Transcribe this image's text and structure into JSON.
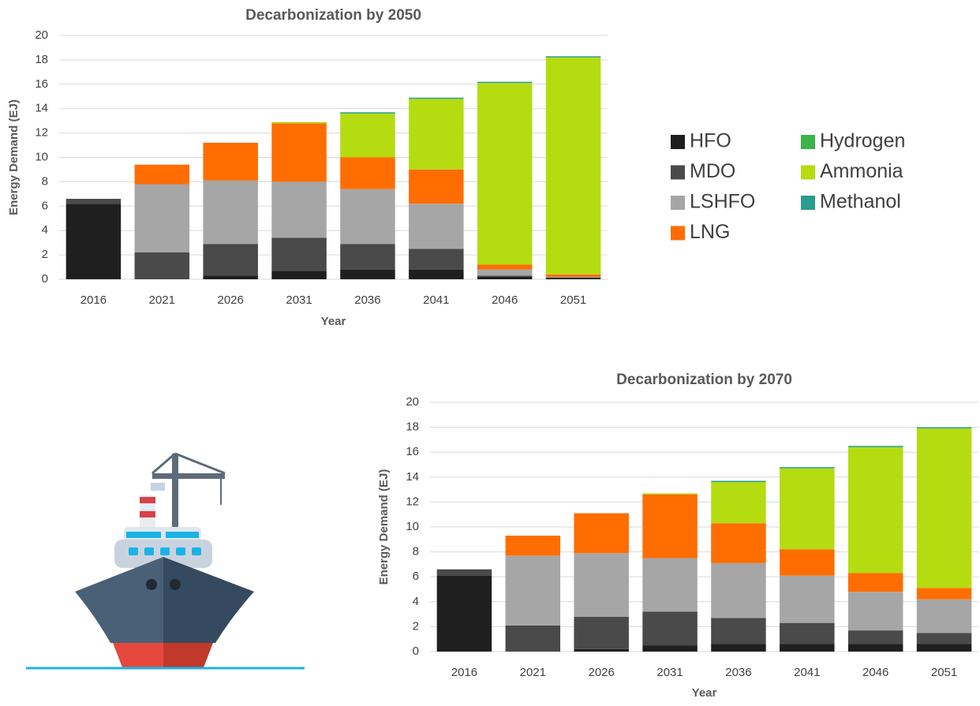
{
  "chart_data": [
    {
      "type": "bar",
      "stacked": true,
      "title": "Decarbonization by 2050",
      "x_label": "Year",
      "y_label": "Energy Demand (EJ)",
      "categories": [
        "2016",
        "2021",
        "2026",
        "2031",
        "2036",
        "2041",
        "2046",
        "2051"
      ],
      "ylim": [
        0,
        20
      ],
      "yticks": [
        0,
        2,
        4,
        6,
        8,
        10,
        12,
        14,
        16,
        18,
        20
      ],
      "grid": true,
      "series": [
        {
          "name": "HFO",
          "color": "#1f1f1f",
          "values": [
            6.2,
            0,
            0.3,
            0.7,
            0.8,
            0.8,
            0.2,
            0.1
          ]
        },
        {
          "name": "MDO",
          "color": "#4a4a4a",
          "values": [
            0.4,
            2.2,
            2.6,
            2.7,
            2.1,
            1.7,
            0.1,
            0.05
          ]
        },
        {
          "name": "LSHFO",
          "color": "#a6a6a6",
          "values": [
            0,
            5.6,
            5.2,
            4.6,
            4.5,
            3.7,
            0.5,
            0.05
          ]
        },
        {
          "name": "LNG",
          "color": "#ff6d00",
          "values": [
            0,
            1.6,
            3.1,
            4.8,
            2.6,
            2.8,
            0.4,
            0.2
          ]
        },
        {
          "name": "Hydrogen",
          "color": "#3cb44b",
          "values": [
            0,
            0,
            0,
            0,
            0,
            0,
            0,
            0
          ]
        },
        {
          "name": "Ammonia",
          "color": "#b5dc10",
          "values": [
            0,
            0,
            0,
            0.1,
            3.6,
            5.8,
            14.9,
            17.8
          ]
        },
        {
          "name": "Methanol",
          "color": "#2a9d8f",
          "values": [
            0,
            0,
            0,
            0,
            0.1,
            0.1,
            0.1,
            0.1
          ]
        }
      ]
    },
    {
      "type": "bar",
      "stacked": true,
      "title": "Decarbonization by 2070",
      "x_label": "Year",
      "y_label": "Energy Demand (EJ)",
      "categories": [
        "2016",
        "2021",
        "2026",
        "2031",
        "2036",
        "2041",
        "2046",
        "2051"
      ],
      "ylim": [
        0,
        20
      ],
      "yticks": [
        0,
        2,
        4,
        6,
        8,
        10,
        12,
        14,
        16,
        18,
        20
      ],
      "grid": true,
      "series": [
        {
          "color": "#1f1f1f",
          "values": [
            6.1,
            0,
            0.2,
            0.5,
            0.6,
            0.6,
            0.6,
            0.6
          ]
        },
        {
          "color": "#4a4a4a",
          "values": [
            0.5,
            2.1,
            2.6,
            2.7,
            2.1,
            1.7,
            1.1,
            0.9
          ]
        },
        {
          "color": "#a6a6a6",
          "values": [
            0,
            5.6,
            5.1,
            4.3,
            4.4,
            3.8,
            3.1,
            2.7
          ]
        },
        {
          "color": "#ff6d00",
          "values": [
            0,
            1.6,
            3.2,
            5.1,
            3.2,
            2.1,
            1.5,
            0.9
          ]
        },
        {
          "color": "#3cb44b",
          "values": [
            0,
            0,
            0,
            0,
            0,
            0,
            0,
            0
          ]
        },
        {
          "color": "#b5dc10",
          "values": [
            0,
            0,
            0,
            0.1,
            3.3,
            6.5,
            10.1,
            12.8
          ]
        },
        {
          "color": "#2a9d8f",
          "values": [
            0,
            0,
            0,
            0,
            0.1,
            0.1,
            0.1,
            0.1
          ]
        }
      ]
    }
  ]
}
